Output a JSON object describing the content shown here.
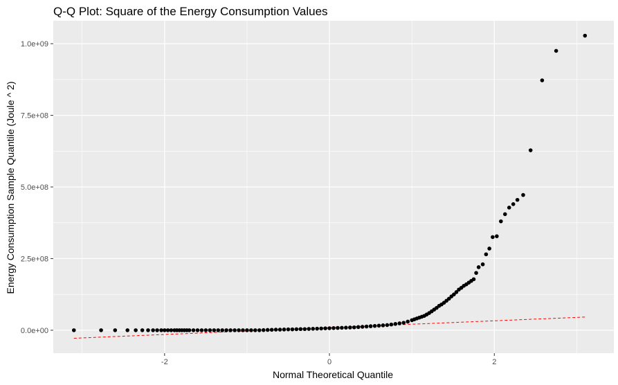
{
  "chart_data": {
    "type": "scatter",
    "title": "Q-Q Plot: Square of the Energy Consumption Values",
    "xlabel": "Normal Theoretical Quantile",
    "ylabel": "Energy Consumption Sample Quantile (Joule ^ 2)",
    "xlim": [
      -3.35,
      3.45
    ],
    "ylim": [
      -80000000,
      1080000000
    ],
    "xticks": [
      -2,
      0,
      2
    ],
    "xtick_labels": [
      "-2",
      "0",
      "2"
    ],
    "yticks": [
      0,
      250000000,
      500000000,
      750000000,
      1000000000
    ],
    "ytick_labels": [
      "0.0e+00",
      "2.5e+08",
      "5.0e+08",
      "7.5e+08",
      "1.0e+09"
    ],
    "grid": true,
    "background": "#ebebeb",
    "grid_color": "#ffffff",
    "point_color": "#000000",
    "reference_line": {
      "style": "dashed",
      "color": "#ff0000",
      "x": [
        -3.1,
        3.1
      ],
      "y": [
        -28000000,
        46000000
      ]
    },
    "points": {
      "x": [
        -3.1,
        -2.77,
        -2.6,
        -2.45,
        -2.35,
        -2.27,
        -2.2,
        -2.14,
        -2.09,
        -2.04,
        -2.0,
        -1.96,
        -1.92,
        -1.88,
        -1.85,
        -1.82,
        -1.79,
        -1.76,
        -1.73,
        -1.7,
        -1.65,
        -1.6,
        -1.55,
        -1.5,
        -1.45,
        -1.4,
        -1.35,
        -1.3,
        -1.25,
        -1.2,
        -1.15,
        -1.1,
        -1.05,
        -1.0,
        -0.95,
        -0.9,
        -0.85,
        -0.8,
        -0.75,
        -0.7,
        -0.65,
        -0.6,
        -0.55,
        -0.5,
        -0.45,
        -0.4,
        -0.35,
        -0.3,
        -0.25,
        -0.2,
        -0.15,
        -0.1,
        -0.05,
        0.0,
        0.05,
        0.1,
        0.15,
        0.2,
        0.25,
        0.3,
        0.35,
        0.4,
        0.45,
        0.5,
        0.55,
        0.6,
        0.65,
        0.7,
        0.75,
        0.8,
        0.85,
        0.9,
        0.95,
        1.0,
        1.03,
        1.06,
        1.09,
        1.12,
        1.15,
        1.18,
        1.21,
        1.24,
        1.27,
        1.3,
        1.33,
        1.36,
        1.39,
        1.42,
        1.45,
        1.48,
        1.51,
        1.54,
        1.57,
        1.6,
        1.63,
        1.66,
        1.69,
        1.72,
        1.75,
        1.78,
        1.81,
        1.86,
        1.9,
        1.94,
        1.98,
        2.03,
        2.08,
        2.13,
        2.18,
        2.23,
        2.28,
        2.35,
        2.44,
        2.58,
        2.75,
        3.1
      ],
      "y": [
        0,
        0,
        0,
        0,
        0,
        0,
        0,
        0,
        0,
        0,
        0,
        0,
        0,
        0,
        0,
        0,
        0,
        0,
        0,
        0,
        0,
        0,
        0,
        0,
        0,
        0,
        0,
        0,
        0,
        0,
        0,
        0,
        0,
        0,
        0,
        0,
        0,
        500000,
        1000000,
        1500000,
        2000000,
        2000000,
        2500000,
        3000000,
        3000000,
        3500000,
        4000000,
        4000000,
        4500000,
        5000000,
        5500000,
        6000000,
        6500000,
        7000000,
        7500000,
        8000000,
        8500000,
        9000000,
        9500000,
        10000000,
        11000000,
        12000000,
        13000000,
        14000000,
        15000000,
        16000000,
        17000000,
        18000000,
        20000000,
        22000000,
        24000000,
        26000000,
        30000000,
        35000000,
        38000000,
        41000000,
        44000000,
        47000000,
        50000000,
        55000000,
        60000000,
        66000000,
        72000000,
        78000000,
        85000000,
        90000000,
        96000000,
        103000000,
        110000000,
        118000000,
        125000000,
        133000000,
        142000000,
        148000000,
        155000000,
        160000000,
        166000000,
        172000000,
        178000000,
        200000000,
        220000000,
        230000000,
        265000000,
        285000000,
        325000000,
        328000000,
        380000000,
        405000000,
        428000000,
        440000000,
        455000000,
        472000000,
        628000000,
        872000000,
        975000000,
        1028000000
      ]
    }
  }
}
